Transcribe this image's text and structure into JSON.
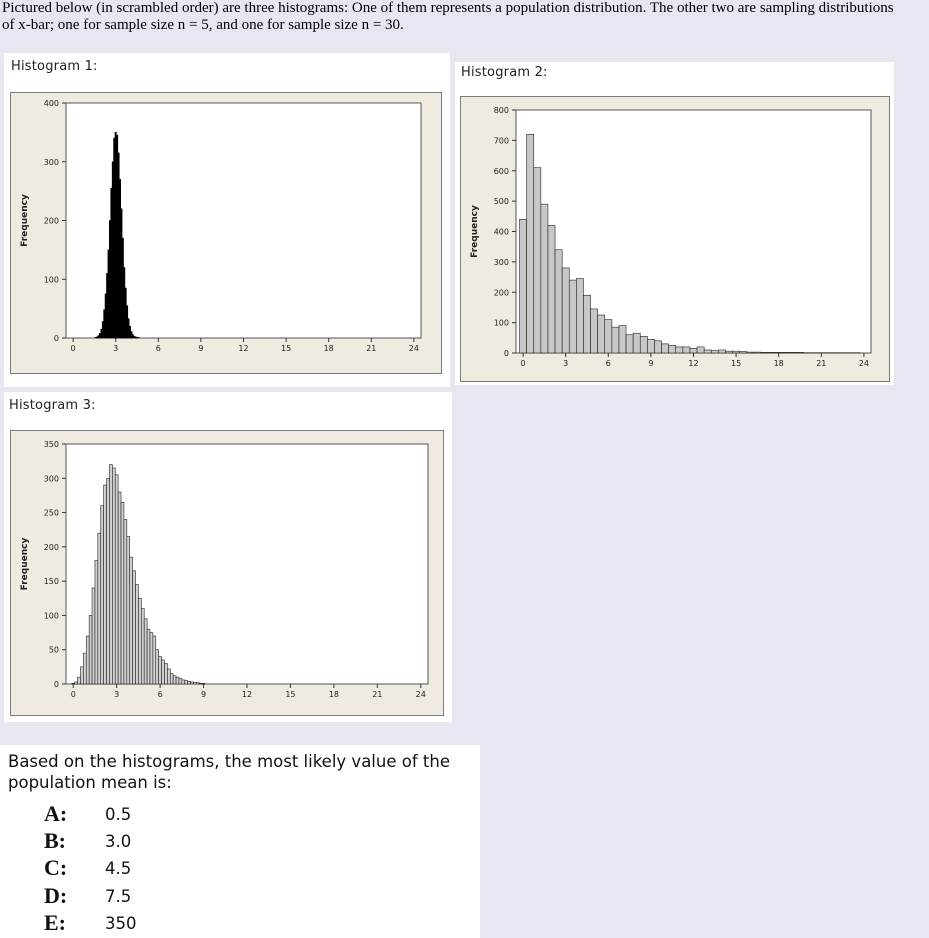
{
  "intro_text": "Pictured below (in scrambled order) are three histograms: One of them represents a population distribution. The other two are sampling distributions of x-bar; one for sample size n = 5, and one for sample size n = 30.",
  "histograms": [
    {
      "title": "Histogram 1:"
    },
    {
      "title": "Histogram 2:"
    },
    {
      "title": "Histogram 3:"
    }
  ],
  "chart_data": [
    {
      "type": "bar",
      "title": "Histogram 1:",
      "ylabel": "Frequency",
      "xlabel": "",
      "xlim": [
        -0.5,
        24.5
      ],
      "ylim": [
        0,
        400
      ],
      "xticks": [
        0,
        3,
        6,
        9,
        12,
        15,
        18,
        21,
        24
      ],
      "yticks": [
        0,
        100,
        200,
        300,
        400
      ],
      "bin_width": 0.1,
      "x": [
        1.6,
        1.7,
        1.8,
        1.9,
        2.0,
        2.1,
        2.2,
        2.3,
        2.4,
        2.5,
        2.6,
        2.7,
        2.8,
        2.9,
        3.0,
        3.1,
        3.2,
        3.3,
        3.4,
        3.5,
        3.6,
        3.7,
        3.8,
        3.9,
        4.0,
        4.1,
        4.2,
        4.3,
        4.4,
        4.5,
        4.6
      ],
      "values": [
        1,
        2,
        4,
        8,
        15,
        28,
        48,
        75,
        110,
        150,
        200,
        255,
        300,
        340,
        350,
        345,
        315,
        270,
        220,
        170,
        120,
        85,
        55,
        33,
        20,
        11,
        6,
        3,
        2,
        1,
        1
      ]
    },
    {
      "type": "bar",
      "title": "Histogram 2:",
      "ylabel": "Frequency",
      "xlabel": "",
      "xlim": [
        -0.5,
        24.5
      ],
      "ylim": [
        0,
        800
      ],
      "xticks": [
        0,
        3,
        6,
        9,
        12,
        15,
        18,
        21,
        24
      ],
      "yticks": [
        0,
        100,
        200,
        300,
        400,
        500,
        600,
        700,
        800
      ],
      "bin_width": 0.5,
      "x": [
        0,
        0.5,
        1,
        1.5,
        2,
        2.5,
        3,
        3.5,
        4,
        4.5,
        5,
        5.5,
        6,
        6.5,
        7,
        7.5,
        8,
        8.5,
        9,
        9.5,
        10,
        10.5,
        11,
        11.5,
        12,
        12.5,
        13,
        13.5,
        14,
        14.5,
        15,
        15.5,
        16,
        16.5,
        17,
        17.5,
        18,
        18.5,
        19,
        19.5,
        20,
        20.5,
        21,
        21.5,
        22,
        22.5,
        23,
        23.5
      ],
      "values": [
        440,
        720,
        610,
        490,
        420,
        340,
        280,
        240,
        245,
        190,
        145,
        125,
        110,
        85,
        90,
        60,
        65,
        55,
        45,
        40,
        30,
        25,
        20,
        20,
        15,
        20,
        10,
        8,
        10,
        6,
        6,
        5,
        3,
        3,
        2,
        2,
        2,
        2,
        2,
        2,
        1,
        1,
        1,
        1,
        1,
        1,
        1,
        1
      ]
    },
    {
      "type": "bar",
      "title": "Histogram 3:",
      "ylabel": "Frequency",
      "xlabel": "",
      "xlim": [
        -0.5,
        24.5
      ],
      "ylim": [
        0,
        350
      ],
      "xticks": [
        0,
        3,
        6,
        9,
        12,
        15,
        18,
        21,
        24
      ],
      "yticks": [
        0,
        50,
        100,
        150,
        200,
        250,
        300,
        350
      ],
      "bin_width": 0.2,
      "x": [
        0.0,
        0.2,
        0.4,
        0.6,
        0.8,
        1.0,
        1.2,
        1.4,
        1.6,
        1.8,
        2.0,
        2.2,
        2.4,
        2.6,
        2.8,
        3.0,
        3.2,
        3.4,
        3.6,
        3.8,
        4.0,
        4.2,
        4.4,
        4.6,
        4.8,
        5.0,
        5.2,
        5.4,
        5.6,
        5.8,
        6.0,
        6.2,
        6.4,
        6.6,
        6.8,
        7.0,
        7.2,
        7.4,
        7.6,
        7.8,
        8.0,
        8.2,
        8.4,
        8.6,
        8.8,
        9.0
      ],
      "values": [
        1,
        3,
        10,
        25,
        45,
        70,
        100,
        140,
        180,
        220,
        260,
        290,
        300,
        320,
        315,
        305,
        280,
        265,
        240,
        215,
        185,
        165,
        145,
        125,
        110,
        95,
        80,
        75,
        70,
        50,
        40,
        35,
        30,
        22,
        15,
        12,
        10,
        8,
        6,
        5,
        4,
        3,
        2,
        2,
        1,
        1
      ]
    }
  ],
  "question": {
    "text": "Based on the histograms, the most likely value of the population mean is:",
    "options": [
      {
        "letter": "A:",
        "value": "0.5"
      },
      {
        "letter": "B:",
        "value": "3.0"
      },
      {
        "letter": "C:",
        "value": "4.5"
      },
      {
        "letter": "D:",
        "value": "7.5"
      },
      {
        "letter": "E:",
        "value": "350"
      }
    ]
  }
}
